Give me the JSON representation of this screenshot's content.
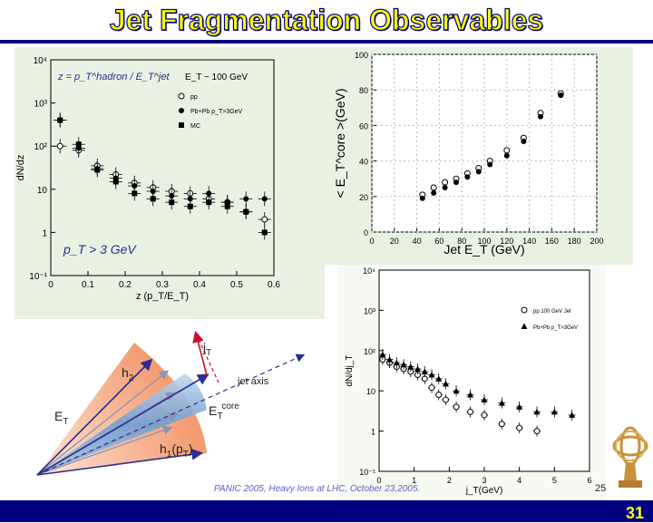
{
  "slide": {
    "title": "Jet Fragmentation Observables",
    "page_number": "31"
  },
  "colors": {
    "title_text": "#ffff00",
    "bar": "#000080",
    "panel_bg": "#e9f1e2",
    "cone": "#f39b71",
    "core": "#7aa6d8"
  },
  "chart_data": [
    {
      "type": "scatter",
      "panel": "fragmentation-z",
      "title": "z = p_T^hadron / E_T^jet",
      "annotation": "p_T > 3 GeV",
      "energy_label": "E_T ~ 100 GeV",
      "xlabel": "z (p_T/E_T)",
      "ylabel": "dN/dz",
      "xlim": [
        0,
        0.6
      ],
      "ylim_log10": [
        -1,
        4
      ],
      "xticks": [
        "0",
        "0.1",
        "0.2",
        "0.3",
        "0.4",
        "0.5",
        "0.6"
      ],
      "yticks": [
        "10⁻¹",
        "1",
        "10",
        "10²",
        "10³",
        "10⁴"
      ],
      "legend": [
        "pp",
        "Pb+Pb p_T>3GeV",
        "MC"
      ],
      "series": [
        {
          "name": "pp",
          "marker": "open-circle",
          "x": [
            0.025,
            0.075,
            0.125,
            0.175,
            0.225,
            0.275,
            0.325,
            0.375,
            0.425,
            0.475,
            0.525,
            0.575
          ],
          "y": [
            100,
            80,
            35,
            22,
            14,
            11,
            9,
            8,
            6,
            5,
            3,
            2
          ]
        },
        {
          "name": "Pb+Pb p_T>3GeV",
          "marker": "filled-circle",
          "x": [
            0.025,
            0.075,
            0.125,
            0.175,
            0.225,
            0.275,
            0.325,
            0.375,
            0.425,
            0.475,
            0.525,
            0.575
          ],
          "y": [
            400,
            90,
            30,
            18,
            12,
            9,
            7,
            6,
            8,
            5,
            6,
            6
          ]
        },
        {
          "name": "MC",
          "marker": "filled-square",
          "x": [
            0.025,
            0.075,
            0.125,
            0.175,
            0.225,
            0.275,
            0.325,
            0.375,
            0.425,
            0.475,
            0.525,
            0.575
          ],
          "y": [
            400,
            110,
            28,
            15,
            8,
            6,
            5,
            4,
            5,
            4,
            3,
            1
          ]
        }
      ]
    },
    {
      "type": "scatter",
      "panel": "et-core",
      "xlabel": "Jet E_T (GeV)",
      "ylabel": "< E_T^core >(GeV)",
      "xlim": [
        0,
        200
      ],
      "ylim": [
        0,
        100
      ],
      "xticks": [
        "0",
        "20",
        "40",
        "60",
        "80",
        "100",
        "120",
        "140",
        "160",
        "180",
        "200"
      ],
      "yticks": [
        "0",
        "20",
        "40",
        "60",
        "80",
        "100"
      ],
      "series": [
        {
          "name": "pp",
          "marker": "open-circle",
          "x": [
            45,
            55,
            65,
            75,
            85,
            95,
            105,
            120,
            135,
            150,
            168
          ],
          "y": [
            21,
            25,
            28,
            30,
            33,
            36,
            40,
            46,
            53,
            67,
            78
          ]
        },
        {
          "name": "Pb+Pb",
          "marker": "filled-circle",
          "x": [
            45,
            55,
            65,
            75,
            85,
            95,
            105,
            120,
            135,
            150,
            168
          ],
          "y": [
            19,
            22,
            25,
            28,
            31,
            34,
            38,
            43,
            51,
            65,
            77
          ]
        }
      ]
    },
    {
      "type": "scatter",
      "panel": "jt-distribution",
      "xlabel": "j_T(GeV)",
      "ylabel": "dN/dj_T",
      "xlim": [
        0,
        6
      ],
      "ylim_log10": [
        -1,
        4
      ],
      "xticks": [
        "0",
        "1",
        "2",
        "3",
        "4",
        "5",
        "6"
      ],
      "yticks": [
        "10⁻¹",
        "1",
        "10",
        "10²",
        "10³",
        "10⁴"
      ],
      "legend": [
        "pp 100 GeV Jet",
        "Pb+Pb p_T>3GeV"
      ],
      "series": [
        {
          "name": "pp 100 GeV Jet",
          "marker": "open-circle",
          "x": [
            0.1,
            0.3,
            0.5,
            0.7,
            0.9,
            1.1,
            1.3,
            1.5,
            1.7,
            1.9,
            2.2,
            2.6,
            3.0,
            3.5,
            4.0,
            4.5
          ],
          "y": [
            60,
            50,
            40,
            35,
            30,
            25,
            20,
            12,
            8,
            6,
            4,
            3,
            2.5,
            1.5,
            1.2,
            1
          ]
        },
        {
          "name": "Pb+Pb p_T>3GeV",
          "marker": "filled-triangle",
          "x": [
            0.1,
            0.3,
            0.5,
            0.7,
            0.9,
            1.1,
            1.3,
            1.5,
            1.7,
            1.9,
            2.2,
            2.6,
            3.0,
            3.5,
            4.0,
            4.5,
            5.0,
            5.5
          ],
          "y": [
            80,
            60,
            50,
            45,
            40,
            35,
            30,
            25,
            20,
            15,
            10,
            8,
            6,
            5,
            4,
            3,
            3,
            2.5
          ]
        }
      ]
    }
  ],
  "diagram": {
    "labels": {
      "jt": "j",
      "jt_sub": "T",
      "h2": "h",
      "h2_sub": "2",
      "jet_axis": "jet axis",
      "et": "E",
      "et_sub": "T",
      "et_core": "E",
      "et_core_sub": "T",
      "et_core_sup": "core",
      "h1": "h",
      "h1_sub": "1",
      "h1_pt": "(p",
      "h1_pt_sub": "T",
      "h1_close": ")"
    },
    "footer": "PANIC 2005, Heavy Ions at LHC, October 23,2005.",
    "footer_page": "25"
  }
}
